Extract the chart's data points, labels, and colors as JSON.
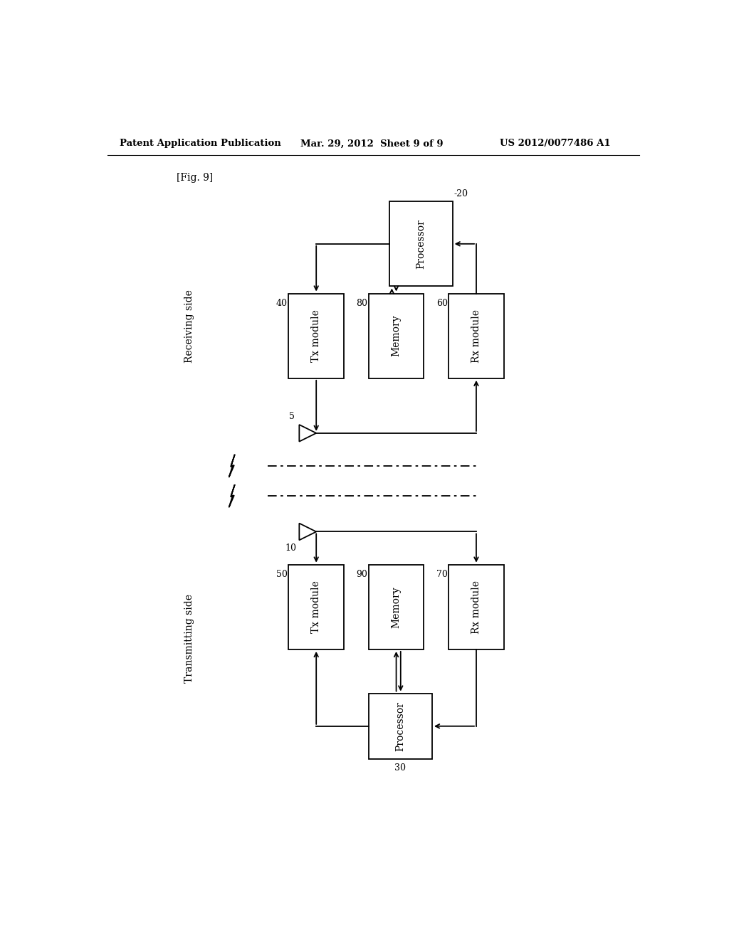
{
  "title_left": "Patent Application Publication",
  "title_mid": "Mar. 29, 2012  Sheet 9 of 9",
  "title_right": "US 2012/0077486 A1",
  "fig_label": "[Fig. 9]",
  "bg_color": "#ffffff",
  "line_color": "#000000",
  "receiving_side_label": "Receiving side",
  "transmitting_side_label": "Transmitting side",
  "receiving": {
    "processor_label": "Processor",
    "processor_num": "-20",
    "tx_label": "Tx module",
    "tx_num": "40",
    "memory_label": "Memory",
    "memory_num": "80",
    "rx_label": "Rx module",
    "rx_num": "60",
    "antenna_num": "5"
  },
  "transmitting": {
    "processor_label": "Processor",
    "processor_num": "30",
    "tx_label": "Tx module",
    "tx_num": "50",
    "memory_label": "Memory",
    "memory_num": "90",
    "rx_label": "Rx module",
    "rx_num": "70",
    "antenna_num": "10"
  }
}
